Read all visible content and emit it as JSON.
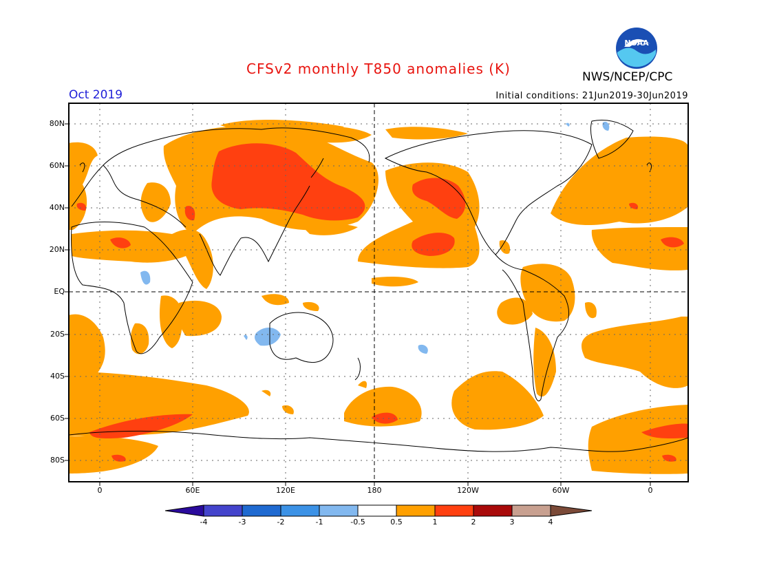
{
  "header": {
    "title": "CFSv2 monthly T850 anomalies (K)",
    "agency": "NWS/NCEP/CPC",
    "logo_text": "NOAA",
    "valid_month": "Oct 2019",
    "initial_conditions": "Initial conditions: 21Jun2019-30Jun2019"
  },
  "map": {
    "lat_labels": [
      "80N",
      "60N",
      "40N",
      "20N",
      "EQ",
      "20S",
      "40S",
      "60S",
      "80S"
    ],
    "lon_labels": [
      "0",
      "60E",
      "120E",
      "180",
      "120W",
      "60W",
      "0"
    ],
    "projection": "cylindrical equidistant, centered on 180",
    "lon_range": [
      -20,
      380
    ],
    "lat_range": [
      -90,
      90
    ]
  },
  "colorbar": {
    "labels": [
      "-4",
      "-3",
      "-2",
      "-1",
      "-0.5",
      "0.5",
      "1",
      "2",
      "3",
      "4"
    ],
    "colors": [
      "#2a0a9c",
      "#4444cc",
      "#1f6ad1",
      "#3c92e6",
      "#82b8ef",
      "#ffffff",
      "#ffa000",
      "#ff4010",
      "#a90a0a",
      "#c8a090",
      "#7b4a38"
    ]
  },
  "legend_colors": {
    "moderate_warm": "#ffa000",
    "strong_warm": "#ff4010",
    "weak_cold": "#82b8ef"
  }
}
